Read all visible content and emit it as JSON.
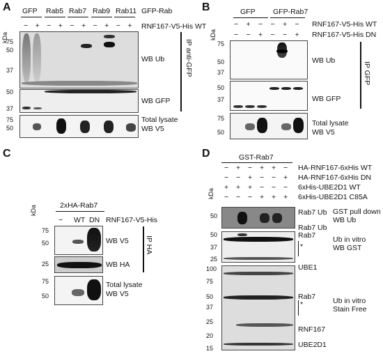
{
  "panels": {
    "A": {
      "letter": "A",
      "kda": "kDa",
      "groups": [
        "GFP",
        "Rab5",
        "Rab7",
        "Rab9",
        "Rab11"
      ],
      "group_label": "GFP-Rab",
      "treat_label": "RNF167-V5-His WT",
      "signs": [
        "−",
        "+",
        "−",
        "+",
        "−",
        "+",
        "−",
        "+",
        "−",
        "+"
      ],
      "mw_top": [
        "75",
        "50",
        "37"
      ],
      "mw_mid": [
        "50",
        "37"
      ],
      "mw_bot": [
        "75",
        "50"
      ],
      "blot_labels": [
        "WB Ub",
        "WB GFP",
        "Total lysate",
        "WB V5"
      ],
      "ip_label": "IP anti-GFP"
    },
    "B": {
      "letter": "B",
      "kda": "kDa",
      "groups": [
        "GFP",
        "GFP-Rab7"
      ],
      "rows": [
        {
          "label": "RNF167-V5-His WT",
          "signs": [
            "−",
            "+",
            "−",
            "−",
            "+",
            "−"
          ]
        },
        {
          "label": "RNF167-V5-His DN",
          "signs": [
            "−",
            "−",
            "+",
            "−",
            "−",
            "+"
          ]
        }
      ],
      "mw_top": [
        "75",
        "50",
        "37"
      ],
      "mw_mid": [
        "50",
        "37"
      ],
      "mw_bot": [
        "75",
        "50"
      ],
      "blot_labels": [
        "WB Ub",
        "WB GFP",
        "Total lysate",
        "WB V5"
      ],
      "ip_label": "IP GFP"
    },
    "C": {
      "letter": "C",
      "kda": "kDa",
      "group": "2xHA-Rab7",
      "lanes": [
        "−",
        "WT",
        "DN"
      ],
      "treat_label": "RNF167-V5-His",
      "mw_top": [
        "75",
        "50"
      ],
      "mw_mid": [
        "25"
      ],
      "mw_bot": [
        "75",
        "50"
      ],
      "blot_labels": [
        "WB V5",
        "WB HA",
        "Total lysate",
        "WB V5"
      ],
      "ip_label": "IP HA"
    },
    "D": {
      "letter": "D",
      "kda": "kDa",
      "group": "GST-Rab7",
      "rows": [
        {
          "label": "HA-RNF167-6xHis WT",
          "signs": [
            "−",
            "+",
            "−",
            "+",
            "+",
            "−"
          ]
        },
        {
          "label": "HA-RNF167-6xHis DN",
          "signs": [
            "−",
            "−",
            "+",
            "−",
            "−",
            "+"
          ]
        },
        {
          "label": "6xHis-UBE2D1 WT",
          "signs": [
            "+",
            "+",
            "+",
            "−",
            "−",
            "−"
          ]
        },
        {
          "label": "6xHis-UBE2D1 C85A",
          "signs": [
            "−",
            "−",
            "−",
            "+",
            "+",
            "+"
          ]
        }
      ],
      "mw_top": [
        "50"
      ],
      "mw_mid": [
        "50",
        "37",
        "25"
      ],
      "mw_bot": [
        "100",
        "75",
        "50",
        "37",
        "25",
        "20",
        "15"
      ],
      "band_labels": [
        "Rab7 Ub",
        "Rab7 Ub",
        "Rab7",
        "*",
        "UBE1",
        "Rab7",
        "*",
        "RNF167",
        "UBE2D1"
      ],
      "blot_labels": [
        "GST pull down",
        "WB Ub",
        "Ub in vitro",
        "WB GST",
        "Ub in vitro",
        "Stain Free"
      ]
    }
  }
}
